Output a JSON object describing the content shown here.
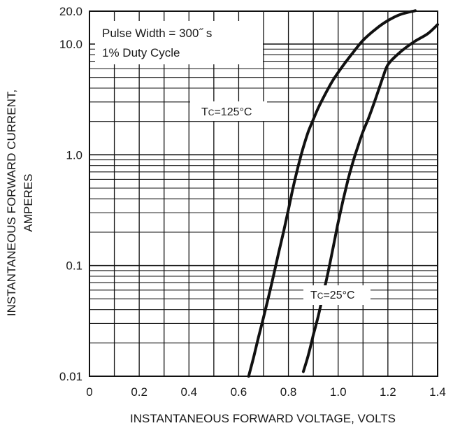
{
  "chart_data": {
    "type": "line",
    "xlabel": "INSTANTANEOUS FORWARD VOLTAGE, VOLTS",
    "ylabel_line1": "INSTANTANEOUS FORWARD CURRENT,",
    "ylabel_line2": "AMPERES",
    "xlim": [
      0,
      1.4
    ],
    "ylim": [
      0.01,
      20.0
    ],
    "yscale": "log",
    "grid": true,
    "x_ticks": [
      0,
      0.2,
      0.4,
      0.6,
      0.8,
      1.0,
      1.2,
      1.4
    ],
    "x_tick_labels": [
      "0",
      "0.2",
      "0.4",
      "0.6",
      "0.8",
      "1.0",
      "1.2",
      "1.4"
    ],
    "y_ticks": [
      0.01,
      0.1,
      1.0,
      10.0,
      20.0
    ],
    "y_tick_labels": [
      "0.01",
      "0.1",
      "1.0",
      "10.0",
      "20.0"
    ],
    "annotation_line1": "Pulse Width = 300˝ s",
    "annotation_line2": "1% Duty Cycle",
    "series": [
      {
        "label_prefix": "T",
        "label_sub": "C",
        "label_suffix": "=125°C",
        "x": [
          0.64,
          0.66,
          0.68,
          0.7,
          0.72,
          0.74,
          0.76,
          0.78,
          0.8,
          0.82,
          0.84,
          0.86,
          0.88,
          0.9,
          0.92,
          0.95,
          0.98,
          1.02,
          1.06,
          1.1,
          1.15,
          1.2,
          1.25,
          1.31
        ],
        "y": [
          0.01,
          0.0148,
          0.0227,
          0.034,
          0.052,
          0.081,
          0.128,
          0.2,
          0.32,
          0.52,
          0.8,
          1.17,
          1.62,
          2.08,
          2.65,
          3.6,
          4.75,
          6.4,
          8.4,
          10.8,
          13.6,
          16.3,
          18.5,
          20.0
        ]
      },
      {
        "label_prefix": "T",
        "label_sub": "C",
        "label_suffix": "=25°C",
        "x": [
          0.86,
          0.88,
          0.9,
          0.92,
          0.94,
          0.96,
          0.98,
          1.0,
          1.02,
          1.04,
          1.06,
          1.08,
          1.1,
          1.12,
          1.14,
          1.16,
          1.18,
          1.2,
          1.24,
          1.3,
          1.36,
          1.4
        ],
        "y": [
          0.011,
          0.0155,
          0.0235,
          0.035,
          0.055,
          0.088,
          0.146,
          0.245,
          0.39,
          0.6,
          0.87,
          1.2,
          1.62,
          2.08,
          2.75,
          3.7,
          5.0,
          6.5,
          8.1,
          10.3,
          12.4,
          15.0
        ]
      }
    ]
  }
}
